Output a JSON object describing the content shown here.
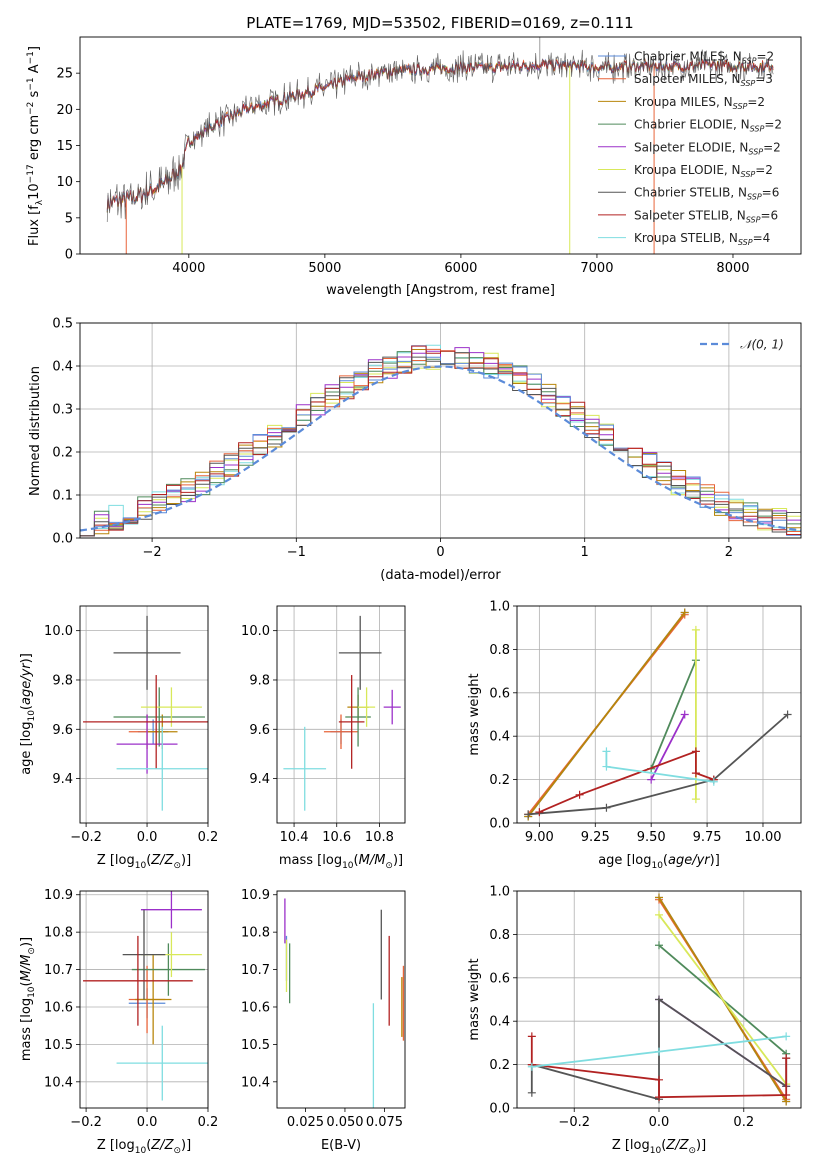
{
  "figure": {
    "title": "PLATE=1769, MJD=53502, FIBERID=0169, z=0.111"
  },
  "chart_data": [
    {
      "id": "spectrum",
      "type": "line",
      "xlabel": "wavelength [Angstrom, rest frame]",
      "ylabel": "Flux [f_λ10^-17 erg cm^-2 s^-1 A^-1]",
      "ylabel_parts": [
        "Flux [f",
        "λ",
        "10",
        "−17",
        " erg cm",
        "−2",
        " s",
        "−1",
        " A",
        "−1",
        "]"
      ],
      "xlim": [
        3200,
        8500
      ],
      "ylim": [
        0,
        30
      ],
      "xticks": [
        4000,
        5000,
        6000,
        7000,
        8000
      ],
      "yticks": [
        0,
        5,
        10,
        15,
        20,
        25
      ],
      "grid": false,
      "legend_position": "top-right",
      "series": [
        {
          "name": "Chabrier MILES, N_SSP=2",
          "name_main": "Chabrier MILES, N",
          "name_sub": "SSP",
          "name_tail": "=2",
          "color": "#5b8bd9"
        },
        {
          "name": "Salpeter MILES, N_SSP=3",
          "name_main": "Salpeter MILES, N",
          "name_sub": "SSP",
          "name_tail": "=3",
          "color": "#e8643a"
        },
        {
          "name": "Kroupa MILES, N_SSP=2",
          "name_main": "Kroupa MILES, N",
          "name_sub": "SSP",
          "name_tail": "=2",
          "color": "#b8860b"
        },
        {
          "name": "Chabrier ELODIE, N_SSP=2",
          "name_main": "Chabrier ELODIE, N",
          "name_sub": "SSP",
          "name_tail": "=2",
          "color": "#4f8a5b"
        },
        {
          "name": "Salpeter ELODIE, N_SSP=2",
          "name_main": "Salpeter ELODIE, N",
          "name_sub": "SSP",
          "name_tail": "=2",
          "color": "#9b30c9"
        },
        {
          "name": "Kroupa ELODIE, N_SSP=2",
          "name_main": "Kroupa ELODIE, N",
          "name_sub": "SSP",
          "name_tail": "=2",
          "color": "#d8e85a"
        },
        {
          "name": "Chabrier STELIB, N_SSP=6",
          "name_main": "Chabrier STELIB, N",
          "name_sub": "SSP",
          "name_tail": "=6",
          "color": "#555555"
        },
        {
          "name": "Salpeter STELIB, N_SSP=6",
          "name_main": "Salpeter STELIB, N",
          "name_sub": "SSP",
          "name_tail": "=6",
          "color": "#b22222"
        },
        {
          "name": "Kroupa STELIB, N_SSP=4",
          "name_main": "Kroupa STELIB, N",
          "name_sub": "SSP",
          "name_tail": "=4",
          "color": "#7fdde0"
        }
      ],
      "continuum": {
        "x": [
          3400,
          3600,
          3800,
          3950,
          4000,
          4200,
          4400,
          4600,
          4800,
          5000,
          5200,
          5400,
          5600,
          5800,
          6000,
          6200,
          6400,
          6600,
          6800,
          7000,
          7200,
          7400,
          7600,
          7800,
          8000,
          8200,
          8300
        ],
        "y": [
          7.0,
          7.8,
          9.5,
          12.0,
          15.5,
          18.0,
          19.8,
          21.0,
          22.0,
          23.0,
          24.3,
          25.0,
          25.4,
          25.6,
          25.8,
          25.7,
          26.0,
          26.2,
          26.0,
          25.8,
          25.9,
          26.0,
          25.9,
          26.1,
          26.0,
          25.9,
          26.1
        ]
      }
    },
    {
      "id": "residuals",
      "type": "area",
      "xlabel": "(data-model)/error",
      "ylabel": "Normed distribution",
      "xlim": [
        -2.5,
        2.5
      ],
      "ylim": [
        0,
        0.5
      ],
      "xticks": [
        -2,
        -1,
        0,
        1,
        2
      ],
      "yticks": [
        0.0,
        0.1,
        0.2,
        0.3,
        0.4,
        0.5
      ],
      "grid": true,
      "legend_position": "top-right",
      "reference_curve": {
        "name": "𝒩(0, 1)",
        "color": "#5b8bd9",
        "style": "dashed",
        "mean": 0,
        "sigma": 1
      },
      "bin_width": 0.1,
      "bin_start": -2.5
    },
    {
      "id": "age_vs_Z",
      "type": "scatter",
      "xlabel": "Z [log10(Z/Z⊙)]",
      "ylabel": "age [log10(age/yr)]",
      "xlim": [
        -0.22,
        0.2
      ],
      "ylim": [
        9.22,
        10.1
      ],
      "xticks": [
        -0.2,
        0.0,
        0.2
      ],
      "yticks": [
        9.4,
        9.6,
        9.8,
        10.0
      ],
      "grid": true,
      "points": [
        {
          "series": 0,
          "x": 0.02,
          "xerr": 0.05,
          "y": 9.59,
          "yerr": 0.05
        },
        {
          "series": 1,
          "x": 0.0,
          "xerr": 0.06,
          "y": 9.59,
          "yerr": 0.07
        },
        {
          "series": 2,
          "x": 0.05,
          "xerr": 0.05,
          "y": 9.59,
          "yerr": 0.07
        },
        {
          "series": 3,
          "x": 0.04,
          "xerr": 0.15,
          "y": 9.65,
          "yerr": 0.12
        },
        {
          "series": 4,
          "x": 0.0,
          "xerr": 0.1,
          "y": 9.54,
          "yerr": 0.12
        },
        {
          "series": 5,
          "x": 0.08,
          "xerr": 0.1,
          "y": 9.69,
          "yerr": 0.08
        },
        {
          "series": 6,
          "x": 0.0,
          "xerr": 0.11,
          "y": 9.91,
          "yerr": 0.15
        },
        {
          "series": 7,
          "x": 0.03,
          "xerr": 0.24,
          "y": 9.63,
          "yerr": 0.19
        },
        {
          "series": 8,
          "x": 0.05,
          "xerr": 0.15,
          "y": 9.44,
          "yerr": 0.17
        }
      ]
    },
    {
      "id": "age_vs_mass",
      "type": "scatter",
      "xlabel": "mass [log10(M/M⊙)]",
      "ylabel": "",
      "xlim": [
        10.32,
        10.92
      ],
      "ylim": [
        9.22,
        10.1
      ],
      "xticks": [
        10.4,
        10.6,
        10.8
      ],
      "yticks": [
        9.4,
        9.6,
        9.8,
        10.0
      ],
      "grid": true,
      "points": [
        {
          "series": 0,
          "x": 10.62,
          "xerr": 0.05,
          "y": 9.59,
          "yerr": 0.05
        },
        {
          "series": 1,
          "x": 10.62,
          "xerr": 0.08,
          "y": 9.59,
          "yerr": 0.07
        },
        {
          "series": 2,
          "x": 10.7,
          "xerr": 0.05,
          "y": 9.69,
          "yerr": 0.05
        },
        {
          "series": 3,
          "x": 10.7,
          "xerr": 0.06,
          "y": 9.65,
          "yerr": 0.12
        },
        {
          "series": 4,
          "x": 10.86,
          "xerr": 0.04,
          "y": 9.69,
          "yerr": 0.07
        },
        {
          "series": 5,
          "x": 10.74,
          "xerr": 0.04,
          "y": 9.69,
          "yerr": 0.08
        },
        {
          "series": 6,
          "x": 10.71,
          "xerr": 0.1,
          "y": 9.91,
          "yerr": 0.15
        },
        {
          "series": 7,
          "x": 10.67,
          "xerr": 0.06,
          "y": 9.63,
          "yerr": 0.19
        },
        {
          "series": 8,
          "x": 10.45,
          "xerr": 0.1,
          "y": 9.44,
          "yerr": 0.17
        }
      ]
    },
    {
      "id": "weight_vs_age",
      "type": "line",
      "xlabel": "age [log10(age/yr)]",
      "ylabel": "mass weight",
      "xlim": [
        8.9,
        10.17
      ],
      "ylim": [
        0,
        1
      ],
      "xticks": [
        9.0,
        9.25,
        9.5,
        9.75,
        10.0
      ],
      "yticks": [
        0.0,
        0.2,
        0.4,
        0.6,
        0.8,
        1.0
      ],
      "grid": true,
      "lines": [
        {
          "series": 0,
          "x": [
            8.95,
            9.65
          ],
          "y": [
            0.03,
            0.97
          ]
        },
        {
          "series": 1,
          "x": [
            8.95,
            9.65
          ],
          "y": [
            0.04,
            0.96
          ]
        },
        {
          "series": 2,
          "x": [
            8.95,
            9.65
          ],
          "y": [
            0.03,
            0.97
          ]
        },
        {
          "series": 3,
          "x": [
            9.5,
            9.7
          ],
          "y": [
            0.25,
            0.75
          ]
        },
        {
          "series": 4,
          "x": [
            9.5,
            9.65
          ],
          "y": [
            0.2,
            0.5
          ]
        },
        {
          "series": 5,
          "x": [
            9.7,
            9.7
          ],
          "y": [
            0.11,
            0.89
          ]
        },
        {
          "series": 6,
          "x": [
            8.95,
            9.3,
            9.78,
            10.11
          ],
          "y": [
            0.04,
            0.07,
            0.2,
            0.5
          ]
        },
        {
          "series": 7,
          "x": [
            9.0,
            9.18,
            9.7,
            9.7,
            9.78
          ],
          "y": [
            0.05,
            0.13,
            0.33,
            0.23,
            0.2
          ]
        },
        {
          "series": 8,
          "x": [
            9.3,
            9.3,
            9.78
          ],
          "y": [
            0.33,
            0.26,
            0.19
          ]
        }
      ]
    },
    {
      "id": "mass_vs_Z",
      "type": "scatter",
      "xlabel": "Z [log10(Z/Z⊙)]",
      "ylabel": "mass [log10(M/M⊙)]",
      "xlim": [
        -0.22,
        0.2
      ],
      "ylim": [
        10.33,
        10.91
      ],
      "xticks": [
        -0.2,
        0.0,
        0.2
      ],
      "yticks": [
        10.4,
        10.5,
        10.6,
        10.7,
        10.8,
        10.9
      ],
      "grid": true,
      "points": [
        {
          "series": 0,
          "x": 0.0,
          "xerr": 0.06,
          "y": 10.61,
          "yerr": 0.04
        },
        {
          "series": 1,
          "x": 0.0,
          "xerr": 0.06,
          "y": 10.62,
          "yerr": 0.09
        },
        {
          "series": 2,
          "x": 0.02,
          "xerr": 0.06,
          "y": 10.62,
          "yerr": 0.12
        },
        {
          "series": 3,
          "x": 0.07,
          "xerr": 0.12,
          "y": 10.7,
          "yerr": 0.07
        },
        {
          "series": 4,
          "x": 0.08,
          "xerr": 0.1,
          "y": 10.86,
          "yerr": 0.05
        },
        {
          "series": 5,
          "x": 0.08,
          "xerr": 0.1,
          "y": 10.74,
          "yerr": 0.06
        },
        {
          "series": 6,
          "x": -0.01,
          "xerr": 0.07,
          "y": 10.74,
          "yerr": 0.12
        },
        {
          "series": 7,
          "x": -0.03,
          "xerr": 0.18,
          "y": 10.67,
          "yerr": 0.12
        },
        {
          "series": 8,
          "x": 0.05,
          "xerr": 0.15,
          "y": 10.45,
          "yerr": 0.1
        }
      ]
    },
    {
      "id": "mass_vs_EBV",
      "type": "scatter",
      "xlabel": "E(B-V)",
      "ylabel": "",
      "xlim": [
        0.007,
        0.088
      ],
      "ylim": [
        10.33,
        10.91
      ],
      "xticks": [
        0.025,
        0.05,
        0.075
      ],
      "xtick_labels": [
        "0.025",
        "0.050",
        "0.075"
      ],
      "yticks": [
        10.4,
        10.5,
        10.6,
        10.7,
        10.8,
        10.9
      ],
      "grid": false,
      "points": [
        {
          "series": 0,
          "x": 0.013,
          "y": 10.73,
          "yerr": 0.06
        },
        {
          "series": 1,
          "x": 0.087,
          "y": 10.61,
          "yerr": 0.1
        },
        {
          "series": 2,
          "x": 0.086,
          "y": 10.6,
          "yerr": 0.08
        },
        {
          "series": 3,
          "x": 0.015,
          "y": 10.69,
          "yerr": 0.08
        },
        {
          "series": 4,
          "x": 0.012,
          "y": 10.83,
          "yerr": 0.06
        },
        {
          "series": 5,
          "x": 0.013,
          "y": 10.71,
          "yerr": 0.07
        },
        {
          "series": 6,
          "x": 0.073,
          "y": 10.74,
          "yerr": 0.12
        },
        {
          "series": 7,
          "x": 0.078,
          "y": 10.67,
          "yerr": 0.12
        },
        {
          "series": 8,
          "x": 0.068,
          "y": 10.45,
          "yerr": 0.16
        }
      ]
    },
    {
      "id": "weight_vs_Z",
      "type": "line",
      "xlabel": "Z [log10(Z/Z⊙)]",
      "ylabel": "mass weight",
      "xlim": [
        -0.335,
        0.335
      ],
      "ylim": [
        0,
        1
      ],
      "xticks": [
        -0.2,
        0.0,
        0.2
      ],
      "yticks": [
        0.0,
        0.2,
        0.4,
        0.6,
        0.8,
        1.0
      ],
      "grid": true,
      "lines": [
        {
          "series": 0,
          "x": [
            0.0,
            0.3
          ],
          "y": [
            0.97,
            0.03
          ]
        },
        {
          "series": 1,
          "x": [
            0.0,
            0.3
          ],
          "y": [
            0.96,
            0.04
          ]
        },
        {
          "series": 2,
          "x": [
            0.0,
            0.3
          ],
          "y": [
            0.97,
            0.03
          ]
        },
        {
          "series": 3,
          "x": [
            0.0,
            0.3
          ],
          "y": [
            0.75,
            0.25
          ]
        },
        {
          "series": 4,
          "x": [
            0.0,
            0.3
          ],
          "y": [
            0.5,
            0.1
          ]
        },
        {
          "series": 5,
          "x": [
            0.0,
            0.3
          ],
          "y": [
            0.89,
            0.11
          ]
        },
        {
          "series": 6,
          "x": [
            -0.3,
            -0.3,
            0.0,
            0.0,
            0.3,
            0.3
          ],
          "y": [
            0.07,
            0.2,
            0.04,
            0.5,
            0.1,
            0.23
          ]
        },
        {
          "series": 7,
          "x": [
            -0.3,
            -0.3,
            0.0,
            0.0,
            0.3,
            0.3
          ],
          "y": [
            0.33,
            0.2,
            0.13,
            0.05,
            0.06,
            0.23
          ]
        },
        {
          "series": 8,
          "x": [
            -0.3,
            0.0,
            0.3
          ],
          "y": [
            0.19,
            0.26,
            0.33
          ]
        }
      ]
    }
  ]
}
